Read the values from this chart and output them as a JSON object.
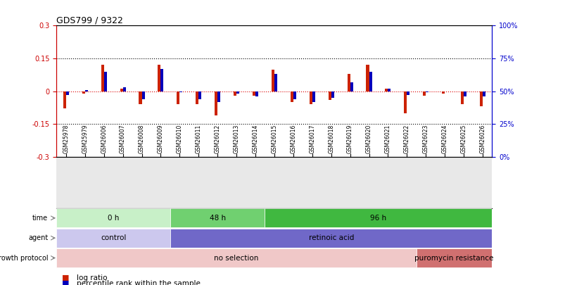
{
  "title": "GDS799 / 9322",
  "samples": [
    "GSM25978",
    "GSM25979",
    "GSM26006",
    "GSM26007",
    "GSM26008",
    "GSM26009",
    "GSM26010",
    "GSM26011",
    "GSM26012",
    "GSM26013",
    "GSM26014",
    "GSM26015",
    "GSM26016",
    "GSM26017",
    "GSM26018",
    "GSM26019",
    "GSM26020",
    "GSM26021",
    "GSM26022",
    "GSM26023",
    "GSM26024",
    "GSM26025",
    "GSM26026"
  ],
  "log_ratio": [
    -0.08,
    -0.01,
    0.12,
    0.01,
    -0.06,
    0.12,
    -0.06,
    -0.06,
    -0.11,
    -0.02,
    -0.02,
    0.1,
    -0.05,
    -0.06,
    -0.04,
    0.08,
    0.12,
    0.01,
    -0.1,
    -0.02,
    -0.01,
    -0.06,
    -0.07
  ],
  "percentile": [
    47,
    51,
    65,
    53,
    44,
    67,
    49,
    44,
    42,
    48,
    46,
    63,
    44,
    42,
    45,
    57,
    65,
    52,
    47,
    49,
    50,
    46,
    46
  ],
  "ylim_left": [
    -0.3,
    0.3
  ],
  "ylim_right": [
    0,
    100
  ],
  "yticks_left": [
    -0.3,
    -0.15,
    0.0,
    0.15,
    0.3
  ],
  "yticks_right": [
    0,
    25,
    50,
    75,
    100
  ],
  "ytick_labels_left": [
    "-0.3",
    "-0.15",
    "0",
    "0.15",
    "0.3"
  ],
  "ytick_labels_right": [
    "0%",
    "25%",
    "50%",
    "75%",
    "100%"
  ],
  "hlines_dotted": [
    0.15,
    -0.15
  ],
  "time_groups": [
    {
      "label": "0 h",
      "start": 0,
      "end": 5,
      "color": "#c8f0c8"
    },
    {
      "label": "48 h",
      "start": 6,
      "end": 10,
      "color": "#70d070"
    },
    {
      "label": "96 h",
      "start": 11,
      "end": 22,
      "color": "#40b840"
    }
  ],
  "agent_groups": [
    {
      "label": "control",
      "start": 0,
      "end": 5,
      "color": "#ccc8ee"
    },
    {
      "label": "retinoic acid",
      "start": 6,
      "end": 22,
      "color": "#7068c8"
    }
  ],
  "growth_groups": [
    {
      "label": "no selection",
      "start": 0,
      "end": 18,
      "color": "#f0c8c8"
    },
    {
      "label": "puromycin resistance",
      "start": 19,
      "end": 22,
      "color": "#d07070"
    }
  ],
  "log_ratio_color": "#cc2200",
  "percentile_color": "#0000bb",
  "background_color": "#ffffff",
  "plot_bg_color": "#ffffff",
  "row_label_color": "#444444",
  "spine_color_left": "#cc0000",
  "spine_color_right": "#0000cc"
}
